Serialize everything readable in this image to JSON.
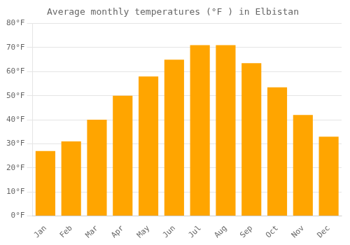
{
  "chart_data": {
    "type": "bar",
    "title": "Average monthly temperatures (°F ) in Elbistan",
    "categories": [
      "Jan",
      "Feb",
      "Mar",
      "Apr",
      "May",
      "Jun",
      "Jul",
      "Aug",
      "Sep",
      "Oct",
      "Nov",
      "Dec"
    ],
    "values": [
      27.0,
      31.0,
      40.0,
      50.0,
      58.0,
      65.0,
      71.0,
      71.0,
      63.5,
      53.5,
      42.0,
      33.0
    ],
    "color": "#FFA500",
    "ylim": [
      0,
      80
    ],
    "yticks": [
      {
        "value": 0,
        "label": "0°F"
      },
      {
        "value": 10,
        "label": "10°F"
      },
      {
        "value": 20,
        "label": "20°F"
      },
      {
        "value": 30,
        "label": "30°F"
      },
      {
        "value": 40,
        "label": "40°F"
      },
      {
        "value": 50,
        "label": "50°F"
      },
      {
        "value": 60,
        "label": "60°F"
      },
      {
        "value": 70,
        "label": "70°F"
      },
      {
        "value": 80,
        "label": "80°F"
      }
    ],
    "grid": true
  }
}
